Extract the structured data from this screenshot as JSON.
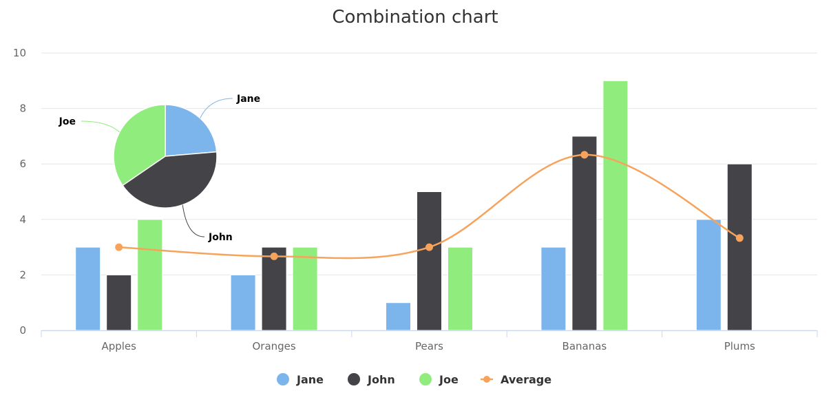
{
  "chart_data": {
    "type": "bar",
    "title": "Combination chart",
    "xlabel": "",
    "ylabel": "",
    "categories": [
      "Apples",
      "Oranges",
      "Pears",
      "Bananas",
      "Plums"
    ],
    "ylim": [
      0,
      10
    ],
    "yticks": [
      "0",
      "2",
      "4",
      "6",
      "8",
      "10"
    ],
    "grid": true,
    "legend_position": "bottom",
    "series": [
      {
        "name": "Jane",
        "type": "bar",
        "color": "#7cb5ec",
        "values": [
          3,
          2,
          1,
          3,
          4
        ]
      },
      {
        "name": "John",
        "type": "bar",
        "color": "#434348",
        "values": [
          2,
          3,
          5,
          7,
          6
        ]
      },
      {
        "name": "Joe",
        "type": "bar",
        "color": "#90ed7d",
        "values": [
          4,
          3,
          3,
          9,
          0
        ]
      },
      {
        "name": "Average",
        "type": "spline",
        "color": "#f7a35c",
        "values": [
          3,
          2.67,
          3,
          6.33,
          3.33
        ]
      }
    ],
    "pie": {
      "slices": [
        {
          "name": "Jane",
          "value": 13,
          "color": "#7cb5ec"
        },
        {
          "name": "John",
          "value": 23,
          "color": "#434348"
        },
        {
          "name": "Joe",
          "value": 19,
          "color": "#90ed7d"
        }
      ]
    }
  }
}
